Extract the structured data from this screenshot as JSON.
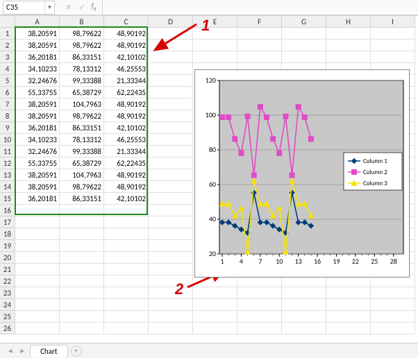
{
  "name_box": {
    "value": "C35"
  },
  "columns": [
    "A",
    "B",
    "C",
    "D",
    "E",
    "F",
    "G",
    "H",
    "I"
  ],
  "row_count": 26,
  "data_rows": [
    [
      "38,20591",
      "98,79622",
      "48,90192"
    ],
    [
      "38,20591",
      "98,79622",
      "48,90192"
    ],
    [
      "36,20181",
      "86,33151",
      "42,10102"
    ],
    [
      "34,10233",
      "78,13312",
      "46,25553"
    ],
    [
      "32,24676",
      "99,33388",
      "21,33344"
    ],
    [
      "55,33755",
      "65,38729",
      "62,22435"
    ],
    [
      "38,20591",
      "104,7963",
      "48,90192"
    ],
    [
      "38,20591",
      "98,79622",
      "48,90192"
    ],
    [
      "36,20181",
      "86,33151",
      "42,10102"
    ],
    [
      "34,10233",
      "78,13312",
      "46,25553"
    ],
    [
      "32,24676",
      "99,33388",
      "21,33344"
    ],
    [
      "55,33755",
      "65,38729",
      "62,22435"
    ],
    [
      "38,20591",
      "104,7963",
      "48,90192"
    ],
    [
      "38,20591",
      "98,79622",
      "48,90192"
    ],
    [
      "36,20181",
      "86,33151",
      "42,10102"
    ]
  ],
  "selection": {
    "cols": 3,
    "rows": 16
  },
  "chart": {
    "type": "line",
    "plot_bg": "#c8c8c8",
    "outer_bg": "#ffffff",
    "grid_color": "#808080",
    "axis_color": "#000000",
    "tick_font_size": 10,
    "y": {
      "min": 20,
      "max": 120,
      "step": 20
    },
    "x": {
      "ticks": [
        1,
        4,
        7,
        10,
        13,
        16,
        19,
        22,
        25,
        28
      ]
    },
    "legend": {
      "border": "#000000",
      "bg": "#ffffff",
      "items": [
        {
          "label": "Column 1",
          "color": "#003d7a",
          "marker": "diamond"
        },
        {
          "label": "Column 2",
          "color": "#e04bc7",
          "marker": "square"
        },
        {
          "label": "Column 3",
          "color": "#f5e400",
          "marker": "triangle"
        }
      ]
    },
    "series": [
      {
        "name": "Column 1",
        "color": "#003d7a",
        "marker": "diamond",
        "y": [
          38.2,
          38.2,
          36.2,
          34.1,
          32.2,
          55.3,
          38.2,
          38.2,
          36.2,
          34.1,
          32.2,
          55.3,
          38.2,
          38.2,
          36.2
        ]
      },
      {
        "name": "Column 2",
        "color": "#e04bc7",
        "marker": "square",
        "y": [
          98.8,
          98.8,
          86.3,
          78.1,
          99.3,
          65.4,
          104.8,
          98.8,
          86.3,
          78.1,
          99.3,
          65.4,
          104.8,
          98.8,
          86.3
        ]
      },
      {
        "name": "Column 3",
        "color": "#f5e400",
        "marker": "triangle",
        "y": [
          48.9,
          48.9,
          42.1,
          46.3,
          21.3,
          62.2,
          48.9,
          48.9,
          42.1,
          46.3,
          21.3,
          62.2,
          48.9,
          48.9,
          42.1
        ]
      }
    ]
  },
  "callouts": {
    "one": "1",
    "two": "2"
  },
  "tabs": {
    "active": "Chart"
  },
  "colors": {
    "selection_border": "#1a8a1a",
    "callout": "#d60000"
  }
}
